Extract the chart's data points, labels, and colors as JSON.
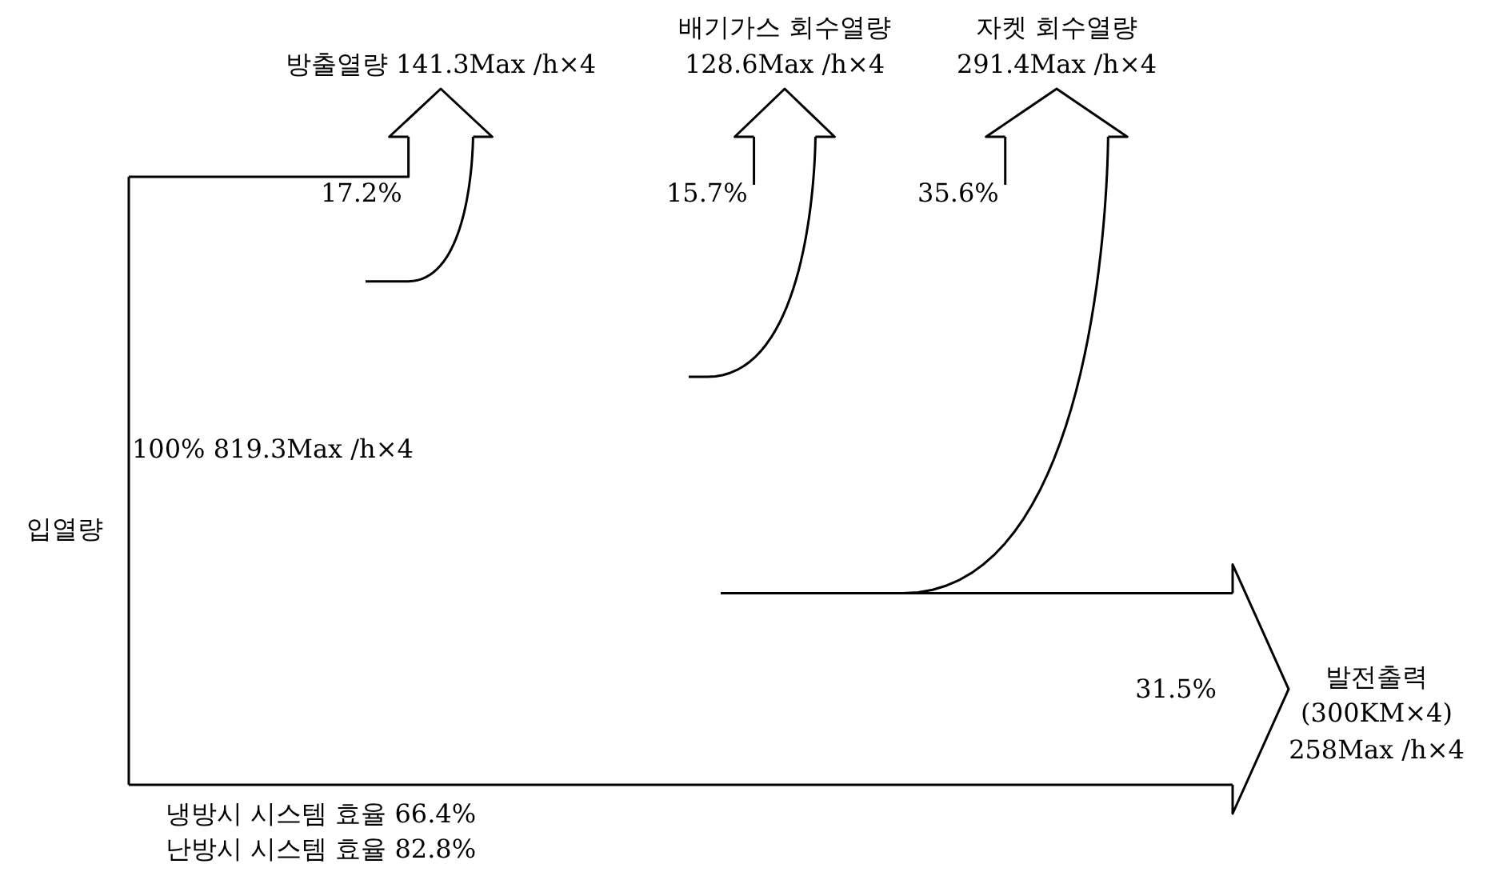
{
  "chart_data": {
    "type": "other",
    "color": "#000000",
    "categories": [
      "방출열량 141.3Max /h×4",
      "배기가스 회수열량\n128.6Max /h×4",
      "자켓 회수열량\n291.4Max /h×4",
      "발전출력\n(300KM×4)\n258Max /h×4"
    ],
    "values": [
      17.2,
      15.7,
      35.6,
      31.5
    ],
    "value_labels": [
      "17.2%",
      "15.7%",
      "35.6%",
      "31.5%"
    ],
    "annotations": [
      "100% 819.3Max /h×4",
      "입열량",
      "냉방시 시스템 효율 66.4%",
      "난방시 시스템 효율 82.8%"
    ]
  }
}
